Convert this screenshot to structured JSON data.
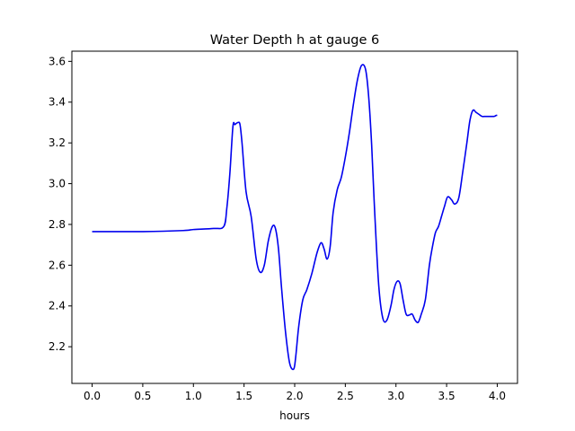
{
  "chart_data": {
    "type": "line",
    "title": "Water Depth h at gauge 6",
    "xlabel": "hours",
    "ylabel": "",
    "xlim": [
      -0.2,
      4.2
    ],
    "ylim": [
      2.02,
      3.65
    ],
    "x_ticks": [
      0.0,
      0.5,
      1.0,
      1.5,
      2.0,
      2.5,
      3.0,
      3.5,
      4.0
    ],
    "x_tick_labels": [
      "0.0",
      "0.5",
      "1.0",
      "1.5",
      "2.0",
      "2.5",
      "3.0",
      "3.5",
      "4.0"
    ],
    "y_ticks": [
      2.2,
      2.4,
      2.6,
      2.8,
      3.0,
      3.2,
      3.4,
      3.6
    ],
    "y_tick_labels": [
      "2.2",
      "2.4",
      "2.6",
      "2.8",
      "3.0",
      "3.2",
      "3.4",
      "3.6"
    ],
    "grid": false,
    "colors": {
      "line": "#0000ee",
      "axes": "#000000",
      "background": "#ffffff"
    },
    "series": [
      {
        "x": [
          0.0,
          0.5,
          0.9,
          1.0,
          1.2,
          1.3,
          1.33,
          1.36,
          1.39,
          1.41,
          1.44,
          1.46,
          1.48,
          1.52,
          1.57,
          1.62,
          1.66,
          1.7,
          1.74,
          1.78,
          1.81,
          1.84,
          1.87,
          1.91,
          1.95,
          1.99,
          2.01,
          2.04,
          2.08,
          2.12,
          2.17,
          2.22,
          2.26,
          2.29,
          2.32,
          2.35,
          2.38,
          2.42,
          2.46,
          2.5,
          2.54,
          2.58,
          2.62,
          2.66,
          2.7,
          2.73,
          2.76,
          2.79,
          2.83,
          2.87,
          2.91,
          2.95,
          2.98,
          3.01,
          3.04,
          3.07,
          3.1,
          3.13,
          3.16,
          3.19,
          3.22,
          3.25,
          3.29,
          3.33,
          3.36,
          3.39,
          3.42,
          3.45,
          3.48,
          3.51,
          3.55,
          3.58,
          3.62,
          3.66,
          3.7,
          3.73,
          3.76,
          3.79,
          3.82,
          3.85,
          3.88,
          3.91,
          3.94,
          3.97,
          3.99,
          4.0
        ],
        "y": [
          2.765,
          2.765,
          2.77,
          2.775,
          2.78,
          2.79,
          2.88,
          3.05,
          3.28,
          3.29,
          3.3,
          3.29,
          3.2,
          2.96,
          2.84,
          2.63,
          2.565,
          2.6,
          2.72,
          2.79,
          2.78,
          2.68,
          2.49,
          2.27,
          2.12,
          2.09,
          2.15,
          2.3,
          2.43,
          2.48,
          2.56,
          2.66,
          2.71,
          2.68,
          2.63,
          2.69,
          2.86,
          2.97,
          3.03,
          3.13,
          3.25,
          3.39,
          3.51,
          3.58,
          3.56,
          3.43,
          3.19,
          2.86,
          2.5,
          2.34,
          2.33,
          2.4,
          2.48,
          2.52,
          2.51,
          2.43,
          2.36,
          2.355,
          2.36,
          2.33,
          2.32,
          2.36,
          2.43,
          2.6,
          2.69,
          2.76,
          2.79,
          2.84,
          2.89,
          2.935,
          2.92,
          2.9,
          2.93,
          3.06,
          3.2,
          3.31,
          3.36,
          3.35,
          3.34,
          3.33,
          3.33,
          3.33,
          3.33,
          3.33,
          3.335,
          3.335
        ]
      }
    ]
  }
}
